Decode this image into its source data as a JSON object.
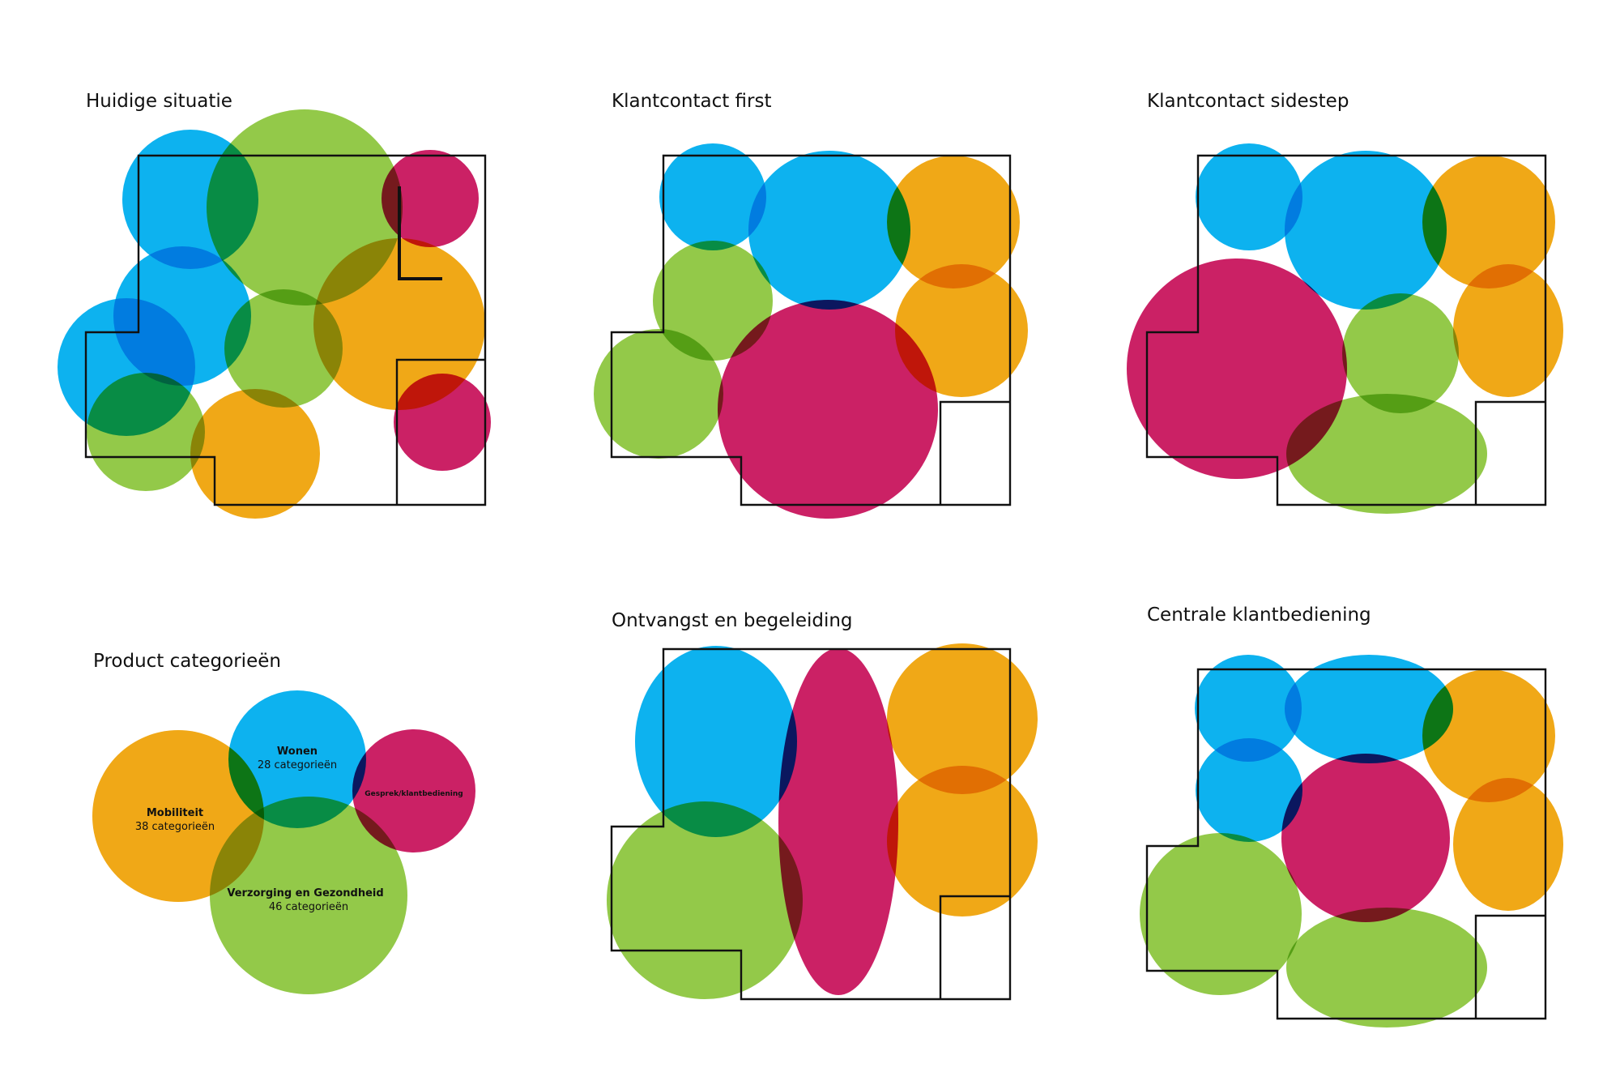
{
  "colors": {
    "wonen": "#00aeef",
    "verzorging": "#8dc63f",
    "mobiliteit": "#f0a30a",
    "gesprek": "#c8155d"
  },
  "panels": {
    "huidige": {
      "title": "Huidige situatie"
    },
    "first": {
      "title": "Klantcontact first"
    },
    "sidestep": {
      "title": "Klantcontact sidestep"
    },
    "categories": {
      "title": "Product categorieën",
      "mobiliteit": {
        "name": "Mobiliteit",
        "count": "38 categorieën"
      },
      "wonen": {
        "name": "Wonen",
        "count": "28 categorieën"
      },
      "gesprek": {
        "name": "Gesprek/klantbediening"
      },
      "verzorging": {
        "name": "Verzorging en Gezondheid",
        "count": "46 categorieën"
      }
    },
    "ontvangst": {
      "title": "Ontvangst en begeleiding"
    },
    "centrale": {
      "title": "Centrale klantbediening"
    }
  }
}
